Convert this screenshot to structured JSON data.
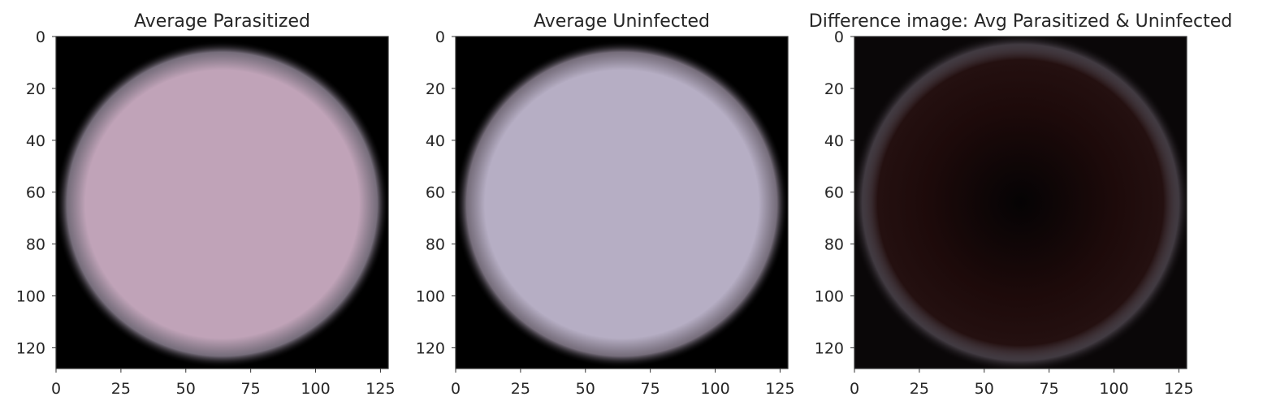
{
  "chart_data": [
    {
      "type": "heatmap",
      "title": "Average Parasitized",
      "xlim": [
        0,
        128
      ],
      "ylim": [
        128,
        0
      ],
      "xticks": [
        0,
        25,
        50,
        75,
        100,
        125
      ],
      "yticks": [
        0,
        20,
        40,
        60,
        80,
        100,
        120
      ],
      "image": {
        "content": "average image of parasitized cells: circular cell on black background",
        "cell_color": "#c0a3b8",
        "background_color": "#000000",
        "cell_center": [
          64,
          64
        ],
        "cell_radius": 63
      }
    },
    {
      "type": "heatmap",
      "title": "Average Uninfected",
      "xlim": [
        0,
        128
      ],
      "ylim": [
        128,
        0
      ],
      "xticks": [
        0,
        25,
        50,
        75,
        100,
        125
      ],
      "yticks": [
        0,
        20,
        40,
        60,
        80,
        100,
        120
      ],
      "image": {
        "content": "average image of uninfected cells: circular cell on black background",
        "cell_color": "#b6aec4",
        "background_color": "#000000",
        "cell_center": [
          64,
          64
        ],
        "cell_radius": 63
      }
    },
    {
      "type": "heatmap",
      "title": "Difference image: Avg Parasitized & Uninfected",
      "xlim": [
        0,
        128
      ],
      "ylim": [
        128,
        0
      ],
      "xticks": [
        0,
        25,
        50,
        75,
        100,
        125
      ],
      "yticks": [
        0,
        20,
        40,
        60,
        80,
        100,
        120
      ],
      "image": {
        "content": "difference of the two average images: mostly black with faint dark-red interior and faint grey ring at cell edge",
        "cell_color": "#1d0a0a",
        "background_color": "#0a0708",
        "ring_color": "#6e6470",
        "cell_center": [
          64,
          64
        ],
        "cell_radius": 63
      }
    }
  ]
}
